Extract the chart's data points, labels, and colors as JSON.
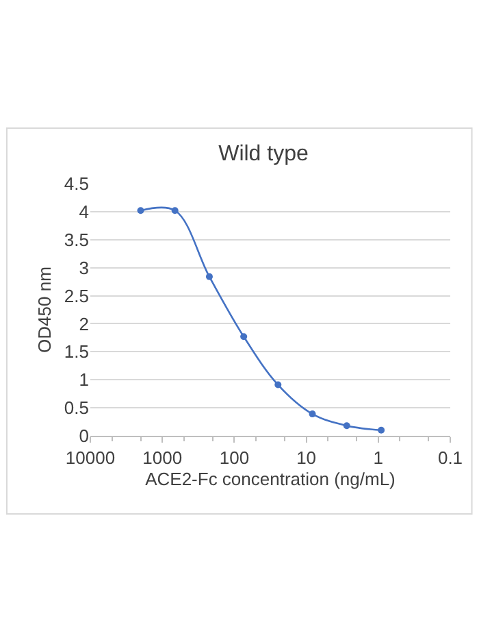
{
  "chart_data": {
    "type": "line",
    "title": "Wild type",
    "xlabel": "ACE2-Fc concentration (ng/mL)",
    "ylabel": "OD450 nm",
    "x": [
      2000,
      667,
      222,
      74,
      24.7,
      8.23,
      2.74,
      0.91
    ],
    "series": [
      {
        "color": "#4472c4",
        "values": [
          4.02,
          4.02,
          2.84,
          1.77,
          0.91,
          0.39,
          0.18,
          0.1
        ]
      }
    ],
    "log": "x",
    "xlim": [
      10000,
      0.1
    ],
    "xticks": [
      10000,
      1000,
      100,
      10,
      1,
      0.1
    ],
    "ylim": [
      0,
      4.5
    ],
    "yticks": [
      0,
      0.5,
      1,
      1.5,
      2,
      2.5,
      3,
      3.5,
      4,
      4.5
    ],
    "grid": "y",
    "marker": "circle",
    "line_style": "solid"
  }
}
